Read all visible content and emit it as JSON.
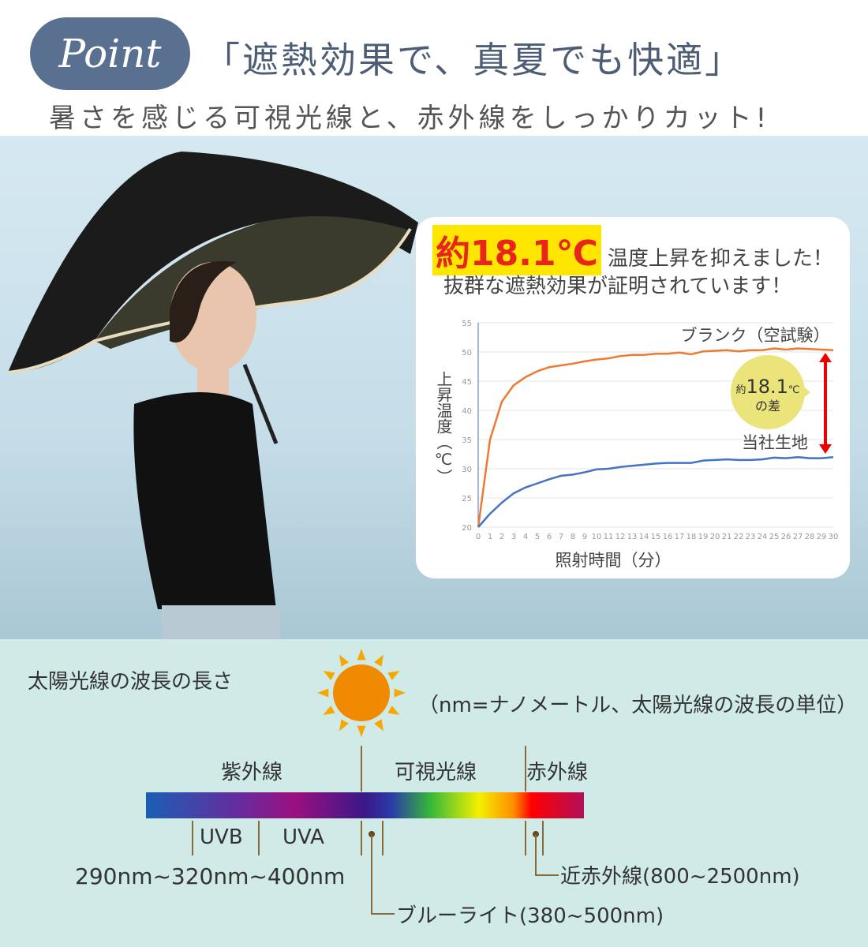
{
  "header": {
    "badge": "Point",
    "headline": "「遮熱効果で、真夏でも快適」",
    "subline": "暑さを感じる可視光線と、赤外線をしっかりカット!"
  },
  "card": {
    "highlight": "約18.1℃",
    "highlight_rest": "温度上昇を抑えました！",
    "line2": "抜群な遮熱効果が証明されています！"
  },
  "chart_data": {
    "type": "line",
    "xlabel": "照射時間（分）",
    "ylabel": "上昇温度（℃）",
    "ylim": [
      20,
      55
    ],
    "yticks": [
      20,
      25,
      30,
      35,
      40,
      45,
      50,
      55
    ],
    "xlim": [
      0,
      30
    ],
    "xticks": [
      0,
      1,
      2,
      3,
      4,
      5,
      6,
      7,
      8,
      9,
      10,
      11,
      12,
      13,
      14,
      15,
      16,
      17,
      18,
      19,
      20,
      21,
      22,
      23,
      24,
      25,
      26,
      27,
      28,
      29,
      30
    ],
    "grid": true,
    "series": [
      {
        "name": "ブランク（空試験）",
        "color": "#ec7a34",
        "values": [
          20,
          35,
          41.5,
          44.3,
          45.7,
          46.7,
          47.4,
          47.7,
          48,
          48.4,
          48.7,
          48.9,
          49.3,
          49.5,
          49.5,
          49.7,
          49.7,
          49.9,
          49.6,
          50.1,
          50.2,
          50.3,
          50.1,
          50.3,
          50.3,
          50.6,
          50.4,
          50.6,
          50.5,
          50.4,
          50.3
        ]
      },
      {
        "name": "当社生地",
        "color": "#4472c4",
        "values": [
          20,
          22.3,
          24.2,
          25.8,
          26.8,
          27.5,
          28.2,
          28.8,
          29,
          29.4,
          29.9,
          30,
          30.3,
          30.5,
          30.7,
          30.9,
          31,
          31,
          31,
          31.4,
          31.5,
          31.6,
          31.5,
          31.5,
          31.6,
          31.9,
          31.8,
          32,
          31.8,
          31.8,
          32
        ]
      }
    ],
    "annotation": {
      "prefix": "約",
      "value": "18.1",
      "unit": "℃",
      "suffix": "の差"
    }
  },
  "spectrum": {
    "title": "太陽光線の波長の長さ",
    "unit_note": "（nm=ナノメートル、太陽光線の波長の単位）",
    "uv": "紫外線",
    "visible": "可視光線",
    "ir": "赤外線",
    "uvb": "UVB",
    "uva": "UVA",
    "range": "290nm~320nm~400nm",
    "near_ir": "近赤外線(800~2500nm)",
    "blue_light": "ブルーライト(380~500nm)"
  }
}
